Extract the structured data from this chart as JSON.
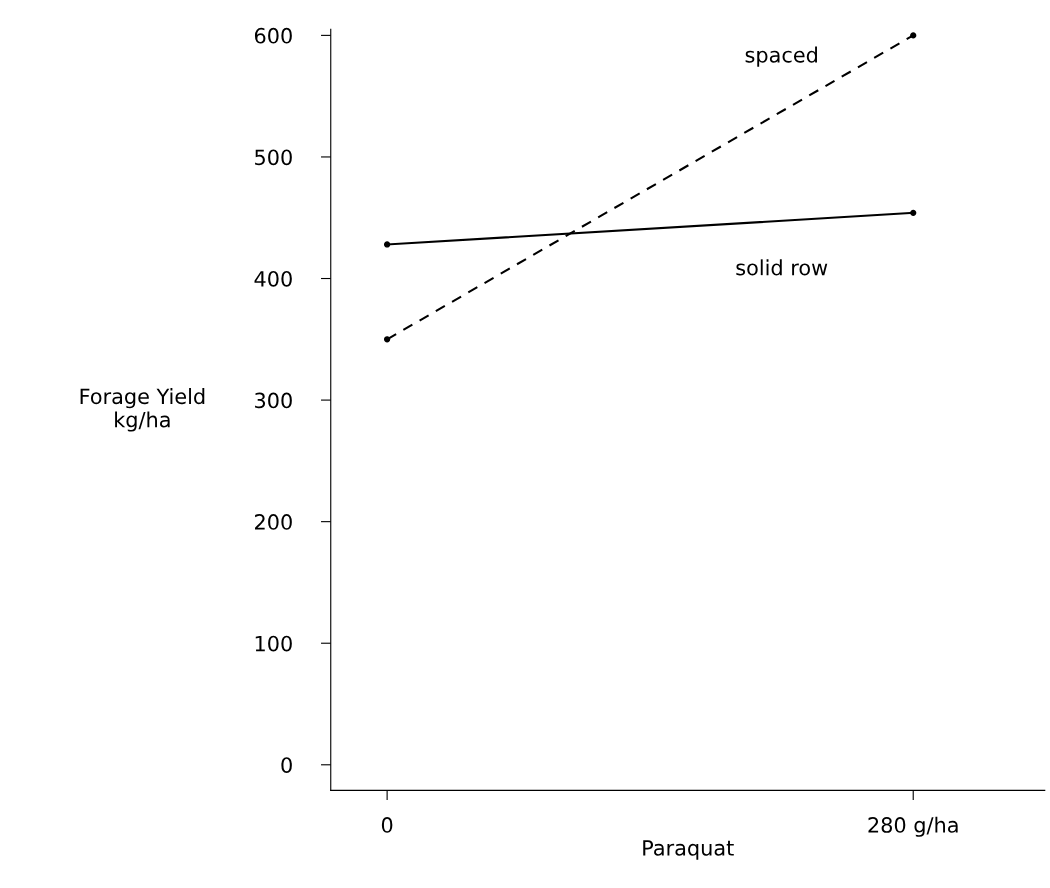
{
  "chart_data": {
    "type": "line",
    "xlabel": "Paraquat",
    "ylabel": "Forage Yield\nkg/ha",
    "x": [
      0,
      280
    ],
    "series": [
      {
        "name": "spaced",
        "color": "#000000",
        "values": [
          350,
          600
        ],
        "line_style": "dashed"
      },
      {
        "name": "solid row",
        "color": "#000000",
        "values": [
          428,
          454
        ],
        "line_style": "solid"
      }
    ],
    "xlim": [
      -30,
      350
    ],
    "xticks": [
      0,
      {
        "value": 280,
        "label": "280 g/ha"
      }
    ],
    "ylim": [
      -21,
      605
    ],
    "yticks": [
      0,
      100,
      200,
      300,
      400,
      500,
      600
    ],
    "marker": "circle",
    "grid": false,
    "legend": false
  }
}
